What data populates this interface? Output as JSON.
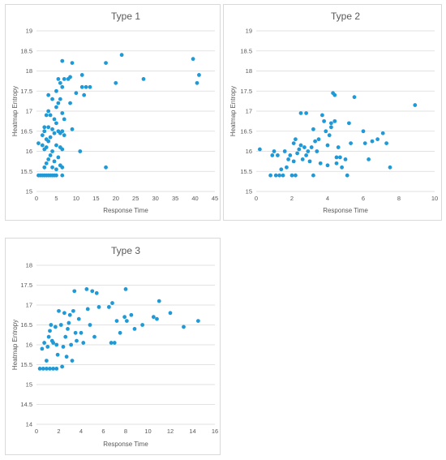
{
  "chart_data": [
    {
      "type": "scatter",
      "title": "Type 1",
      "xlabel": "Response Time",
      "ylabel": "Heatmap Entropy",
      "xlim": [
        0,
        45
      ],
      "xticks": [
        0,
        5,
        10,
        15,
        20,
        25,
        30,
        35,
        40,
        45
      ],
      "ylim": [
        15,
        19
      ],
      "yticks": [
        15,
        15.5,
        16,
        16.5,
        17,
        17.5,
        18,
        18.5,
        19
      ],
      "color": "#1f9ad6",
      "points": [
        [
          0.5,
          15.4
        ],
        [
          1,
          15.4
        ],
        [
          1.5,
          15.4
        ],
        [
          2,
          15.4
        ],
        [
          2.5,
          15.4
        ],
        [
          3,
          15.4
        ],
        [
          3.5,
          15.4
        ],
        [
          4,
          15.4
        ],
        [
          4.5,
          15.4
        ],
        [
          5,
          15.4
        ],
        [
          6.5,
          15.4
        ],
        [
          0.5,
          16.2
        ],
        [
          1.5,
          16.15
        ],
        [
          2,
          16.05
        ],
        [
          2.5,
          16.1
        ],
        [
          3,
          16.25
        ],
        [
          4,
          16.0
        ],
        [
          5,
          16.15
        ],
        [
          6,
          16.1
        ],
        [
          6.5,
          16.05
        ],
        [
          1.5,
          16.4
        ],
        [
          2,
          16.5
        ],
        [
          2.5,
          16.3
        ],
        [
          3,
          16.6
        ],
        [
          3.5,
          16.35
        ],
        [
          4,
          16.55
        ],
        [
          4.5,
          16.45
        ],
        [
          5,
          16.7
        ],
        [
          5.5,
          16.5
        ],
        [
          6,
          16.45
        ],
        [
          6.5,
          16.5
        ],
        [
          7,
          16.4
        ],
        [
          2,
          15.6
        ],
        [
          2.5,
          15.7
        ],
        [
          3,
          15.8
        ],
        [
          3.5,
          15.9
        ],
        [
          4,
          15.6
        ],
        [
          4.5,
          15.75
        ],
        [
          5,
          15.55
        ],
        [
          5.5,
          15.85
        ],
        [
          6,
          15.65
        ],
        [
          6.5,
          15.6
        ],
        [
          2,
          16.6
        ],
        [
          2.5,
          16.9
        ],
        [
          3,
          17.0
        ],
        [
          3.5,
          16.9
        ],
        [
          4,
          17.3
        ],
        [
          4.5,
          16.8
        ],
        [
          5,
          17.1
        ],
        [
          5.5,
          17.2
        ],
        [
          6,
          17.3
        ],
        [
          6.5,
          16.95
        ],
        [
          7,
          16.8
        ],
        [
          3,
          17.4
        ],
        [
          5,
          17.5
        ],
        [
          6,
          17.7
        ],
        [
          6.5,
          17.6
        ],
        [
          7,
          17.8
        ],
        [
          5.5,
          17.8
        ],
        [
          8,
          17.8
        ],
        [
          8.5,
          17.85
        ],
        [
          8.5,
          17.2
        ],
        [
          9,
          16.55
        ],
        [
          6.5,
          18.25
        ],
        [
          9,
          18.2
        ],
        [
          10,
          17.45
        ],
        [
          11.5,
          17.9
        ],
        [
          11.5,
          17.6
        ],
        [
          12,
          17.4
        ],
        [
          12.5,
          17.6
        ],
        [
          13.5,
          17.6
        ],
        [
          11,
          16.0
        ],
        [
          17.5,
          15.6
        ],
        [
          17.5,
          18.2
        ],
        [
          20,
          17.7
        ],
        [
          21.5,
          18.4
        ],
        [
          27,
          17.8
        ],
        [
          39.5,
          18.3
        ],
        [
          40.5,
          17.7
        ],
        [
          41,
          17.9
        ]
      ]
    },
    {
      "type": "scatter",
      "title": "Type 2",
      "xlabel": "Response Time",
      "ylabel": "Heatmap Entropy",
      "xlim": [
        0,
        10
      ],
      "xticks": [
        0,
        2,
        4,
        6,
        8,
        10
      ],
      "ylim": [
        15,
        19
      ],
      "yticks": [
        15,
        15.5,
        16,
        16.5,
        17,
        17.5,
        18,
        18.5,
        19
      ],
      "color": "#1f9ad6",
      "points": [
        [
          0.2,
          16.05
        ],
        [
          0.8,
          15.4
        ],
        [
          0.9,
          15.9
        ],
        [
          1.0,
          16.0
        ],
        [
          1.1,
          15.4
        ],
        [
          1.2,
          15.9
        ],
        [
          1.3,
          15.4
        ],
        [
          1.4,
          15.55
        ],
        [
          1.5,
          15.4
        ],
        [
          1.6,
          16.0
        ],
        [
          1.7,
          15.6
        ],
        [
          1.8,
          15.8
        ],
        [
          1.9,
          15.9
        ],
        [
          2.0,
          15.4
        ],
        [
          2.1,
          16.2
        ],
        [
          2.1,
          15.75
        ],
        [
          2.2,
          16.3
        ],
        [
          2.2,
          15.4
        ],
        [
          2.3,
          15.95
        ],
        [
          2.4,
          16.05
        ],
        [
          2.5,
          16.95
        ],
        [
          2.5,
          16.15
        ],
        [
          2.6,
          15.8
        ],
        [
          2.7,
          16.1
        ],
        [
          2.8,
          16.95
        ],
        [
          2.8,
          15.9
        ],
        [
          2.9,
          16.0
        ],
        [
          3.0,
          15.75
        ],
        [
          3.1,
          16.1
        ],
        [
          3.2,
          15.4
        ],
        [
          3.2,
          16.55
        ],
        [
          3.3,
          16.25
        ],
        [
          3.4,
          16.0
        ],
        [
          3.5,
          16.3
        ],
        [
          3.6,
          15.7
        ],
        [
          3.7,
          16.9
        ],
        [
          3.8,
          16.75
        ],
        [
          3.9,
          16.5
        ],
        [
          4.0,
          15.65
        ],
        [
          4.0,
          16.15
        ],
        [
          4.1,
          16.4
        ],
        [
          4.2,
          16.7
        ],
        [
          4.2,
          16.6
        ],
        [
          4.3,
          17.45
        ],
        [
          4.4,
          17.4
        ],
        [
          4.4,
          16.75
        ],
        [
          4.5,
          15.85
        ],
        [
          4.5,
          15.7
        ],
        [
          4.6,
          16.1
        ],
        [
          4.7,
          15.85
        ],
        [
          4.8,
          15.6
        ],
        [
          5.0,
          15.8
        ],
        [
          5.1,
          15.4
        ],
        [
          5.2,
          16.7
        ],
        [
          5.5,
          17.35
        ],
        [
          5.3,
          16.2
        ],
        [
          6.0,
          16.5
        ],
        [
          6.1,
          16.2
        ],
        [
          6.3,
          15.8
        ],
        [
          6.5,
          16.25
        ],
        [
          6.8,
          16.3
        ],
        [
          7.1,
          16.45
        ],
        [
          7.3,
          16.2
        ],
        [
          7.5,
          15.6
        ],
        [
          8.9,
          17.15
        ]
      ]
    },
    {
      "type": "scatter",
      "title": "Type 3",
      "xlabel": "Response Time",
      "ylabel": "Heatmap Entropy",
      "xlim": [
        0,
        16
      ],
      "xticks": [
        0,
        2,
        4,
        6,
        8,
        10,
        12,
        14,
        16
      ],
      "ylim": [
        14,
        18
      ],
      "yticks": [
        14,
        14.5,
        15,
        15.5,
        16,
        16.5,
        17,
        17.5,
        18
      ],
      "color": "#1f9ad6",
      "points": [
        [
          0.3,
          15.4
        ],
        [
          0.6,
          15.4
        ],
        [
          0.9,
          15.4
        ],
        [
          1.2,
          15.4
        ],
        [
          1.5,
          15.4
        ],
        [
          1.8,
          15.4
        ],
        [
          0.5,
          15.9
        ],
        [
          0.7,
          16.05
        ],
        [
          0.9,
          15.6
        ],
        [
          1.0,
          15.95
        ],
        [
          1.1,
          16.2
        ],
        [
          1.2,
          16.35
        ],
        [
          1.3,
          16.5
        ],
        [
          1.4,
          16.1
        ],
        [
          1.5,
          16.05
        ],
        [
          1.7,
          16.45
        ],
        [
          1.8,
          16.0
        ],
        [
          1.9,
          15.75
        ],
        [
          2.0,
          16.85
        ],
        [
          2.2,
          16.5
        ],
        [
          2.3,
          15.45
        ],
        [
          2.4,
          15.95
        ],
        [
          2.5,
          16.8
        ],
        [
          2.6,
          16.2
        ],
        [
          2.7,
          15.7
        ],
        [
          2.8,
          16.4
        ],
        [
          2.9,
          16.55
        ],
        [
          3.0,
          16.75
        ],
        [
          3.1,
          16.0
        ],
        [
          3.2,
          15.6
        ],
        [
          3.3,
          16.85
        ],
        [
          3.4,
          17.35
        ],
        [
          3.5,
          16.3
        ],
        [
          3.6,
          16.1
        ],
        [
          3.8,
          16.65
        ],
        [
          4.0,
          16.3
        ],
        [
          4.2,
          16.05
        ],
        [
          4.5,
          17.4
        ],
        [
          4.6,
          16.9
        ],
        [
          4.8,
          16.5
        ],
        [
          5.0,
          17.35
        ],
        [
          5.2,
          16.2
        ],
        [
          5.4,
          17.3
        ],
        [
          5.6,
          16.95
        ],
        [
          6.5,
          16.95
        ],
        [
          6.7,
          16.05
        ],
        [
          6.8,
          17.05
        ],
        [
          7.0,
          16.05
        ],
        [
          7.2,
          16.6
        ],
        [
          7.5,
          16.3
        ],
        [
          7.9,
          16.7
        ],
        [
          8.0,
          17.4
        ],
        [
          8.1,
          16.6
        ],
        [
          8.5,
          16.75
        ],
        [
          8.8,
          16.4
        ],
        [
          9.5,
          16.5
        ],
        [
          10.5,
          16.7
        ],
        [
          10.8,
          16.65
        ],
        [
          11.0,
          17.1
        ],
        [
          12.0,
          16.8
        ],
        [
          13.2,
          16.45
        ],
        [
          14.5,
          16.6
        ]
      ]
    }
  ]
}
